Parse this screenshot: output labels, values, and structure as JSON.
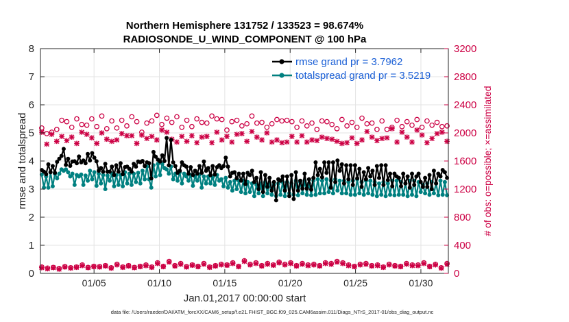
{
  "chart_data": {
    "type": "line",
    "title": [
      "Northern Hemisphere 131752 / 133523 = 98.674%",
      "RADIOSONDE_U_WIND_COMPONENT @ 100 hPa"
    ],
    "xlabel": "Jan.01,2017 00:00:00 start",
    "ylabel": "rmse and totalspread",
    "y2label": "# of obs: o=possible; ×=assimilated",
    "ylim": [
      0,
      8
    ],
    "y2lim": [
      0,
      3200
    ],
    "xlim": [
      0.9,
      32.1
    ],
    "xticks": [
      5,
      10,
      15,
      20,
      25,
      30
    ],
    "xtick_labels": [
      "01/05",
      "01/10",
      "01/15",
      "01/20",
      "01/25",
      "01/30"
    ],
    "yticks": [
      "0",
      "1",
      "2",
      "3",
      "4",
      "5",
      "6",
      "7",
      "8"
    ],
    "y2ticks": [
      "0",
      "400",
      "800",
      "1200",
      "1600",
      "2000",
      "2400",
      "2800",
      "3200"
    ],
    "grid": true,
    "legend_position": "top-right",
    "footer": "data file: /Users/raeder/DAI/ATM_forcXX/CAM6_setup/f.e21.FHIST_BGC.f09_025.CAM6assim.011/Diags_NTrS_2017-01/obs_diag_output.nc",
    "series": [
      {
        "name": "rmse grand pr = 3.7962",
        "axis": "left",
        "color": "#000000",
        "marker": "star",
        "values": [
          3.68,
          3.62,
          3.53,
          3.88,
          3.6,
          3.82,
          3.58,
          3.97,
          4.08,
          4.18,
          4.43,
          3.86,
          4.08,
          3.83,
          3.98,
          3.99,
          3.92,
          4.16,
          3.95,
          4.02,
          3.92,
          4.25,
          4.02,
          4.28,
          4.12,
          3.99,
          3.65,
          3.75,
          3.62,
          3.9,
          3.62,
          3.62,
          3.8,
          3.5,
          3.85,
          3.62,
          3.92,
          3.53,
          3.78,
          3.8,
          3.72,
          3.62,
          3.9,
          3.8,
          3.98,
          3.96,
          4.0,
          3.82,
          3.95,
          3.92,
          3.38,
          4.32,
          4.15,
          4.05,
          3.98,
          4.2,
          4.0,
          4.82,
          3.85,
          4.75,
          3.95,
          3.82,
          3.58,
          3.65,
          3.95,
          3.85,
          3.8,
          3.55,
          3.78,
          3.5,
          3.65,
          3.55,
          3.82,
          3.58,
          3.98,
          3.65,
          3.75,
          3.5,
          3.82,
          3.52,
          3.78,
          3.85,
          3.75,
          3.82,
          4.12,
          3.8,
          3.45,
          3.58,
          3.6,
          3.38,
          3.55,
          3.3,
          3.55,
          3.18,
          3.58,
          3.5,
          3.65,
          3.25,
          3.4,
          3.0,
          3.6,
          2.9,
          3.5,
          3.08,
          3.4,
          2.95,
          3.25,
          2.6,
          3.35,
          3.3,
          3.45,
          2.95,
          3.45,
          2.75,
          3.5,
          2.65,
          3.6,
          2.95,
          3.3,
          3.02,
          3.55,
          3.02,
          3.35,
          2.98,
          3.4,
          3.95,
          3.5,
          3.72,
          3.42,
          3.95,
          3.58,
          3.95,
          3.05,
          3.95,
          3.25,
          4.02,
          3.65,
          3.88,
          3.2,
          3.85,
          3.35,
          3.85,
          3.15,
          3.85,
          3.38,
          3.72,
          3.08,
          3.6,
          3.35,
          3.75,
          3.45,
          3.65,
          3.15,
          3.82,
          3.4,
          3.85,
          3.15,
          3.85,
          3.32,
          3.55,
          3.1,
          3.55,
          3.45,
          3.4,
          3.1,
          3.55,
          3.2,
          3.45,
          3.05,
          3.55,
          3.15,
          3.45,
          3.55,
          3.25,
          3.08,
          3.4,
          3.08,
          3.5,
          3.0,
          3.65,
          3.2,
          3.55,
          3.45,
          3.68,
          3.6,
          3.4
        ]
      },
      {
        "name": "totalspread grand pr = 3.5219",
        "axis": "left",
        "color": "#008080",
        "marker": "circle",
        "values": [
          3.52,
          3.05,
          3.45,
          3.05,
          3.6,
          3.1,
          3.55,
          3.38,
          3.55,
          3.7,
          3.65,
          3.7,
          3.6,
          3.45,
          3.55,
          3.15,
          3.5,
          3.45,
          3.52,
          3.15,
          3.48,
          3.3,
          3.65,
          3.35,
          3.6,
          3.12,
          3.55,
          3.2,
          3.5,
          3.0,
          3.48,
          3.3,
          3.55,
          3.1,
          3.5,
          3.15,
          3.5,
          3.1,
          3.6,
          3.2,
          3.55,
          3.15,
          3.55,
          3.25,
          3.58,
          3.2,
          3.65,
          3.35,
          3.8,
          3.35,
          3.05,
          3.85,
          3.45,
          3.9,
          3.5,
          3.9,
          3.75,
          3.7,
          3.55,
          3.8,
          3.35,
          3.55,
          3.3,
          3.6,
          3.2,
          3.55,
          3.45,
          3.3,
          3.5,
          3.12,
          3.45,
          3.3,
          3.52,
          3.05,
          3.45,
          3.2,
          3.45,
          3.2,
          3.42,
          3.15,
          3.5,
          3.3,
          3.35,
          3.1,
          3.4,
          3.05,
          3.25,
          2.95,
          3.3,
          3.0,
          3.3,
          2.9,
          3.3,
          2.85,
          3.25,
          2.9,
          3.2,
          2.75,
          3.15,
          2.85,
          3.2,
          2.75,
          3.25,
          2.85,
          3.2,
          2.8,
          3.15,
          2.75,
          3.2,
          2.8,
          3.25,
          2.75,
          3.25,
          2.85,
          3.2,
          2.8,
          3.3,
          2.78,
          3.25,
          2.85,
          3.3,
          2.8,
          3.2,
          2.78,
          3.3,
          2.8,
          3.35,
          2.85,
          3.3,
          2.85,
          3.35,
          2.9,
          3.3,
          2.85,
          3.35,
          2.95,
          3.3,
          2.85,
          3.3,
          2.85,
          3.25,
          2.8,
          3.3,
          2.8,
          3.35,
          2.85,
          3.25,
          2.8,
          3.3,
          2.85,
          3.3,
          2.8,
          3.25,
          2.75,
          3.2,
          2.8,
          3.25,
          2.75,
          3.2,
          2.8,
          3.3,
          2.78,
          3.3,
          2.8,
          3.25,
          2.8,
          3.2,
          2.75,
          3.3,
          2.8,
          3.3,
          2.75,
          3.25,
          2.9,
          3.15,
          2.85,
          3.2,
          2.8,
          3.25,
          2.85,
          3.2,
          2.78,
          3.3,
          2.8,
          3.25,
          2.78
        ]
      },
      {
        "name": "possible obs",
        "axis": "right",
        "color": "#cc0044",
        "marker": "o",
        "values": [
          2070,
          1990,
          2010,
          2050,
          2180,
          2160,
          2080,
          2200,
          2120,
          2110,
          2200,
          2090,
          2240,
          2060,
          2170,
          2070,
          2180,
          2100,
          2230,
          2160,
          2010,
          2140,
          2170,
          2250,
          2120,
          2210,
          2150,
          2230,
          2080,
          2180,
          2090,
          2200,
          2150,
          2140,
          2240,
          2200,
          2190,
          2040,
          2160,
          2180,
          2100,
          2130,
          2240,
          2140,
          2150,
          2080,
          2130,
          2190,
          2170,
          2180,
          2160,
          2080,
          2170,
          2100,
          2140,
          2050,
          2170,
          2160,
          2120,
          2060,
          2190,
          2100,
          2150,
          2080,
          2210,
          2130,
          2140,
          2050,
          2170,
          2050,
          2080,
          2180,
          2090,
          2160,
          2110,
          2190,
          2080,
          2170,
          2110,
          2150,
          2090,
          2100
        ]
      },
      {
        "name": "assimilated obs",
        "axis": "right",
        "color": "#cc0044",
        "marker": "x",
        "values": [
          2010,
          1840,
          1980,
          1880,
          1950,
          1890,
          1940,
          1850,
          2010,
          1980,
          1930,
          1850,
          2000,
          1910,
          1880,
          1900,
          1990,
          1960,
          1960,
          1850,
          1970,
          1920,
          1950,
          1900,
          2040,
          2010,
          1910,
          1870,
          1950,
          1880,
          1960,
          1860,
          1940,
          1950,
          1860,
          2010,
          1900,
          1950,
          1870,
          1980,
          1990,
          1880,
          2020,
          1940,
          1900,
          2000,
          1870,
          1900,
          1860,
          1870,
          1950,
          1870,
          1960,
          1870,
          1900,
          1890,
          1940,
          1920,
          1910,
          1880,
          1850,
          1860,
          1930,
          1850,
          1900,
          2020,
          1940,
          1890,
          1920,
          1930,
          2060,
          1870,
          2010,
          1940,
          1870,
          2040,
          1970,
          1860,
          1920,
          1990,
          2010,
          1880
        ]
      }
    ],
    "low_obs_series": [
      {
        "name": "possible obs (low)",
        "axis": "right",
        "color": "#cc0044",
        "values": [
          90,
          75,
          85,
          70,
          95,
          80,
          90,
          120,
          85,
          100,
          95,
          110,
          80,
          130,
          90,
          110,
          85,
          100,
          120,
          90,
          150,
          100,
          170,
          110,
          140,
          95,
          120,
          100,
          140,
          90,
          110,
          130,
          120,
          150,
          100,
          180,
          130,
          150,
          110,
          140,
          120,
          160,
          130,
          150,
          110,
          140,
          120,
          130,
          110,
          150,
          140,
          170,
          150,
          120,
          100,
          130,
          140,
          110,
          120,
          90,
          130,
          110,
          100,
          140,
          120,
          120,
          150,
          100,
          130,
          80,
          140
        ]
      },
      {
        "name": "assimilated obs (low)",
        "axis": "right",
        "color": "#cc0044",
        "values": [
          80,
          65,
          80,
          60,
          90,
          75,
          85,
          110,
          80,
          95,
          90,
          105,
          75,
          120,
          85,
          105,
          80,
          95,
          110,
          85,
          140,
          95,
          160,
          105,
          130,
          90,
          115,
          95,
          130,
          85,
          105,
          120,
          115,
          140,
          95,
          170,
          120,
          140,
          105,
          130,
          115,
          150,
          120,
          140,
          105,
          130,
          110,
          120,
          105,
          140,
          130,
          160,
          140,
          110,
          95,
          120,
          130,
          105,
          110,
          85,
          120,
          105,
          95,
          130,
          110,
          110,
          140,
          95,
          120,
          75,
          130
        ]
      }
    ]
  }
}
